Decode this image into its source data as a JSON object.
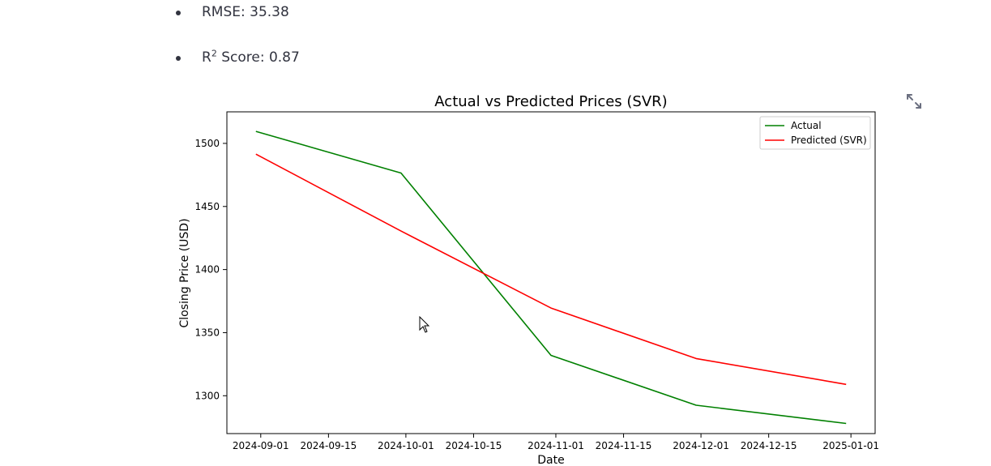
{
  "metrics": [
    {
      "label": "RMSE",
      "value": "35.38",
      "text": "RMSE: 35.38"
    },
    {
      "label_main": "R",
      "label_sup": "2",
      "label_rest": " Score: 0.87",
      "value": "0.87"
    }
  ],
  "toolbar": {
    "fullscreen_icon": "expand-icon"
  },
  "chart_data": {
    "type": "line",
    "title": "Actual vs Predicted Prices (SVR)",
    "xlabel": "Date",
    "ylabel": "Closing Price (USD)",
    "x": [
      "2024-08-31",
      "2024-09-30",
      "2024-10-31",
      "2024-11-30",
      "2024-12-31"
    ],
    "x_ticks": [
      "2024-09-01",
      "2024-09-15",
      "2024-10-01",
      "2024-10-15",
      "2024-11-01",
      "2024-11-15",
      "2024-12-01",
      "2024-12-15",
      "2025-01-01"
    ],
    "y_ticks": [
      1300,
      1350,
      1400,
      1450,
      1500
    ],
    "ylim": [
      1270,
      1525
    ],
    "xlim": [
      "2024-08-25",
      "2025-01-06"
    ],
    "grid": false,
    "legend_position": "top-right",
    "series": [
      {
        "name": "Actual",
        "color": "#008000",
        "values": [
          1509.5,
          1476.5,
          1332,
          1292.5,
          1278
        ]
      },
      {
        "name": "Predicted (SVR)",
        "color": "#ff0000",
        "values": [
          1491.5,
          1430.5,
          1369.5,
          1329.5,
          1309
        ]
      }
    ]
  }
}
